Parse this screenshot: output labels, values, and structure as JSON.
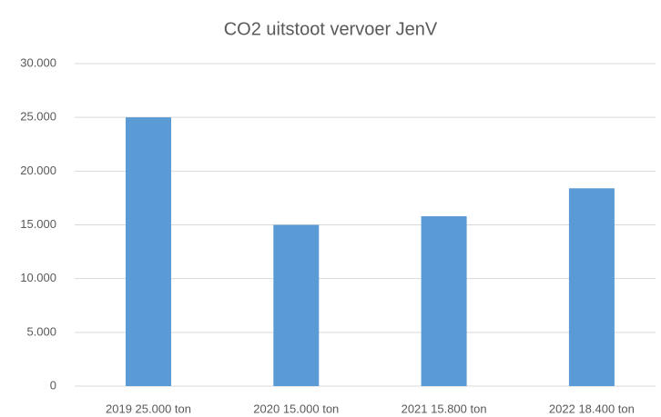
{
  "chart_data": {
    "type": "bar",
    "title": "CO2 uitstoot vervoer JenV",
    "categories": [
      "2019 25.000 ton",
      "2020 15.000 ton",
      "2021 15.800 ton",
      "2022 18.400 ton"
    ],
    "values": [
      25000,
      15000,
      15800,
      18400
    ],
    "color": "#5b9bd5",
    "ylim": [
      0,
      30000
    ],
    "yticks": [
      0,
      {
        "value": 5000,
        "label": "5.000"
      },
      {
        "value": 10000,
        "label": "10.000"
      },
      {
        "value": 15000,
        "label": "15.000"
      },
      {
        "value": 20000,
        "label": "20.000"
      },
      {
        "value": 25000,
        "label": "25.000"
      },
      {
        "value": 30000,
        "label": "30.000"
      }
    ],
    "grid": true
  }
}
